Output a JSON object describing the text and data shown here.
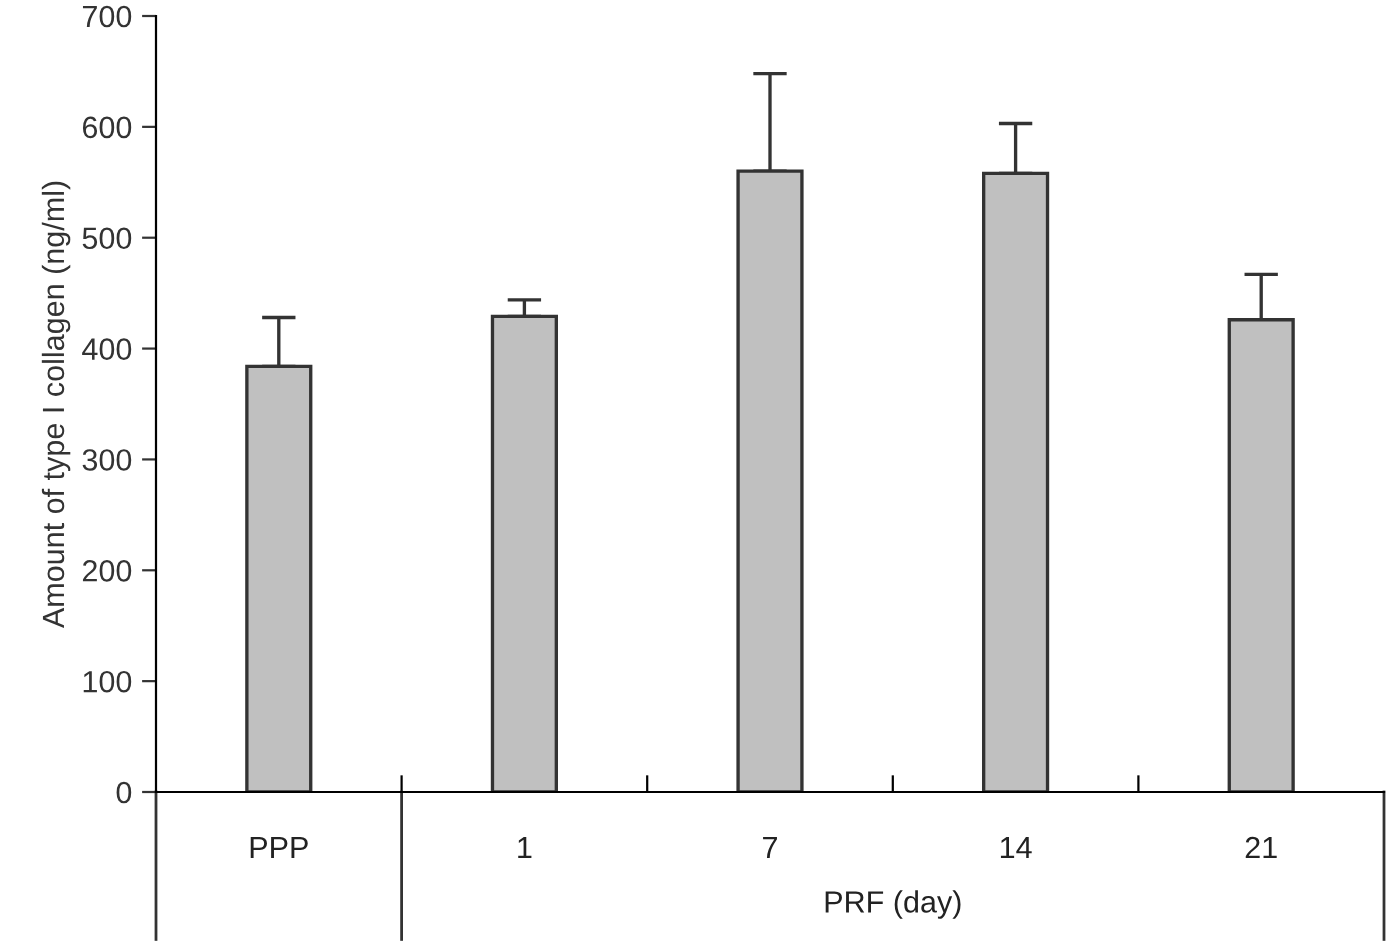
{
  "chart_data": {
    "type": "bar",
    "xlabel": "PRF (day)",
    "ylabel": "Amount of type I collagen (ng/ml)",
    "categories": [
      "PPP",
      "1",
      "7",
      "14",
      "21"
    ],
    "values": [
      384,
      429,
      560,
      558,
      426
    ],
    "errors": [
      [
        384,
        428
      ],
      [
        429,
        444
      ],
      [
        560,
        648
      ],
      [
        558,
        603
      ],
      [
        426,
        467
      ]
    ],
    "color": "#c0c0c0",
    "ylim": [
      0,
      700
    ],
    "yticks": [
      0,
      100,
      200,
      300,
      400,
      500,
      600,
      700
    ],
    "grid": false,
    "legend": false
  }
}
